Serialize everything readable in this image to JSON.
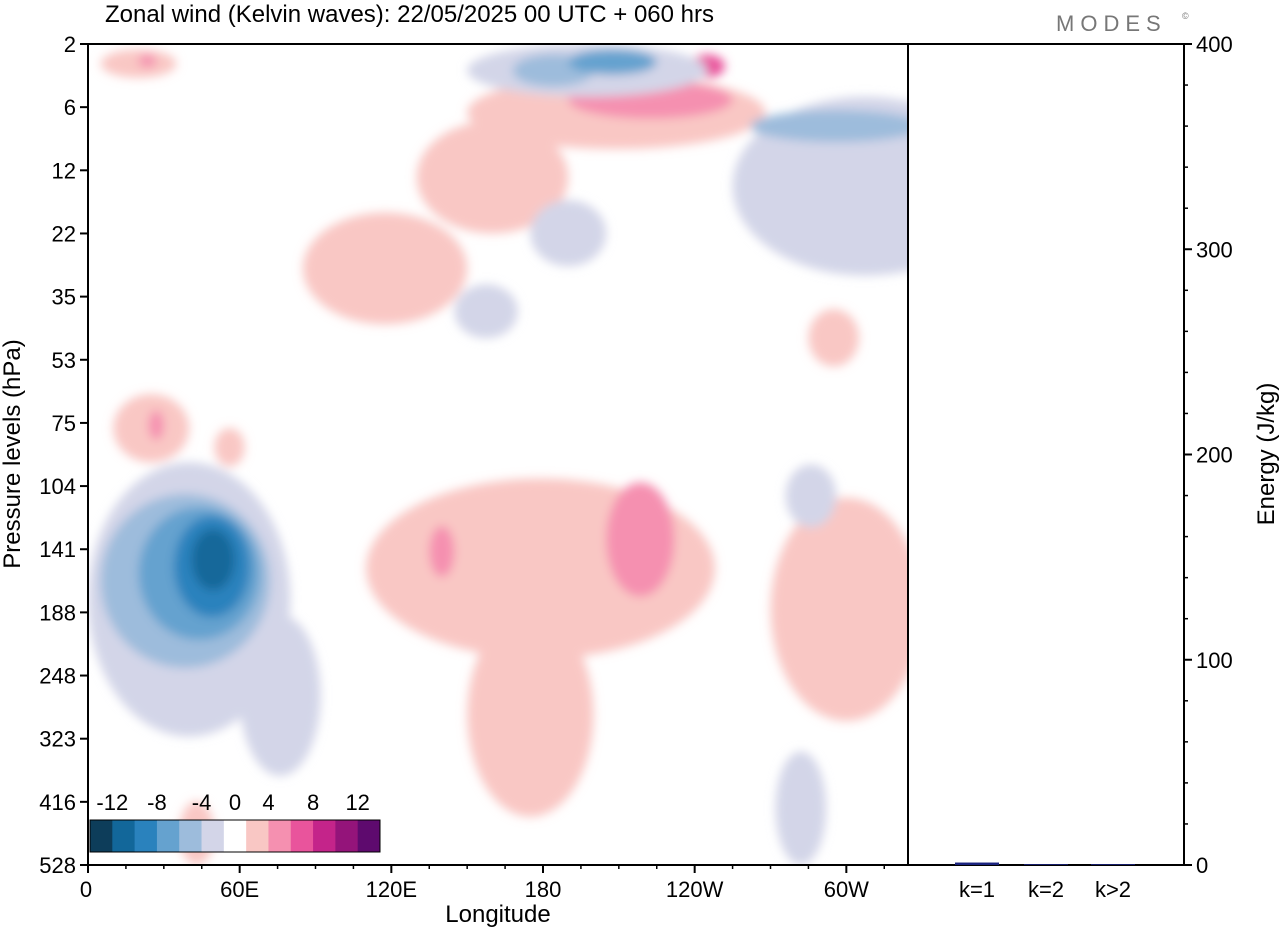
{
  "title": "Zonal wind (Kelvin waves):  22/05/2025  00 UTC  + 060 hrs",
  "brand": "MODES",
  "brand_mark": "©",
  "chart_data": [
    {
      "type": "heatmap",
      "title": "Zonal wind (Kelvin waves):  22/05/2025  00 UTC  + 060 hrs",
      "xlabel": "Longitude",
      "ylabel": "Pressure levels (hPa)",
      "x_ticks": [
        "0",
        "60E",
        "120E",
        "180",
        "120W",
        "60W"
      ],
      "x_range_deg": [
        0,
        360
      ],
      "y_ticks": [
        2,
        6,
        12,
        22,
        35,
        53,
        75,
        104,
        141,
        188,
        248,
        323,
        416,
        528
      ],
      "grid": false,
      "colorbar": {
        "labels": [
          "-12",
          "-8",
          "-4",
          "0",
          "4",
          "8",
          "12"
        ],
        "levels": [
          -14,
          -12,
          -10,
          -8,
          -6,
          -4,
          -2,
          2,
          4,
          6,
          8,
          10,
          12,
          14
        ],
        "colors": [
          "#0d3d5a",
          "#12679a",
          "#2a82bd",
          "#65a2cf",
          "#9dbcdc",
          "#d3d5e8",
          "#ffffff",
          "#f9c7c4",
          "#f590b0",
          "#e9549c",
          "#c4248a",
          "#94147a",
          "#5e0a6e"
        ]
      },
      "regions": [
        {
          "lon": [
            5,
            35
          ],
          "lev": [
            2.2,
            3.6
          ],
          "sign": 1,
          "strength": 1
        },
        {
          "lon": [
            20,
            27
          ],
          "lev": [
            2.4,
            3.0
          ],
          "sign": 1,
          "strength": 2
        },
        {
          "lon": [
            150,
            268
          ],
          "lev": [
            3.5,
            9.5
          ],
          "sign": 1,
          "strength": 1
        },
        {
          "lon": [
            190,
            255
          ],
          "lev": [
            3.8,
            6.8
          ],
          "sign": 1,
          "strength": 2
        },
        {
          "lon": [
            238,
            252
          ],
          "lev": [
            2.4,
            3.6
          ],
          "sign": 1,
          "strength": 3
        },
        {
          "lon": [
            130,
            190
          ],
          "lev": [
            7,
            22
          ],
          "sign": 1,
          "strength": 1
        },
        {
          "lon": [
            85,
            150
          ],
          "lev": [
            18,
            42
          ],
          "sign": 1,
          "strength": 1
        },
        {
          "lon": [
            150,
            245
          ],
          "lev": [
            2,
            5
          ],
          "sign": -1,
          "strength": 1
        },
        {
          "lon": [
            168,
            200
          ],
          "lev": [
            2.4,
            4.2
          ],
          "sign": -1,
          "strength": 2
        },
        {
          "lon": [
            190,
            225
          ],
          "lev": [
            2.2,
            3.4
          ],
          "sign": -1,
          "strength": 3
        },
        {
          "lon": [
            255,
            360
          ],
          "lev": [
            5,
            30
          ],
          "sign": -1,
          "strength": 1
        },
        {
          "lon": [
            262,
            330
          ],
          "lev": [
            6.2,
            8.8
          ],
          "sign": -1,
          "strength": 2
        },
        {
          "lon": [
            175,
            205
          ],
          "lev": [
            16,
            28
          ],
          "sign": -1,
          "strength": 1
        },
        {
          "lon": [
            145,
            170
          ],
          "lev": [
            32,
            46
          ],
          "sign": -1,
          "strength": 1
        },
        {
          "lon": [
            0,
            80
          ],
          "lev": [
            92,
            320
          ],
          "sign": -1,
          "strength": 1
        },
        {
          "lon": [
            5,
            72
          ],
          "lev": [
            108,
            240
          ],
          "sign": -1,
          "strength": 2
        },
        {
          "lon": [
            20,
            68
          ],
          "lev": [
            115,
            212
          ],
          "sign": -1,
          "strength": 3
        },
        {
          "lon": [
            34,
            64
          ],
          "lev": [
            120,
            192
          ],
          "sign": -1,
          "strength": 4
        },
        {
          "lon": [
            41,
            58
          ],
          "lev": [
            128,
            170
          ],
          "sign": -1,
          "strength": 5
        },
        {
          "lon": [
            60,
            92
          ],
          "lev": [
            190,
            375
          ],
          "sign": -1,
          "strength": 1
        },
        {
          "lon": [
            10,
            40
          ],
          "lev": [
            64,
            92
          ],
          "sign": 1,
          "strength": 1
        },
        {
          "lon": [
            24,
            30
          ],
          "lev": [
            70,
            82
          ],
          "sign": 1,
          "strength": 2
        },
        {
          "lon": [
            50,
            62
          ],
          "lev": [
            77,
            94
          ],
          "sign": 1,
          "strength": 1
        },
        {
          "lon": [
            110,
            248
          ],
          "lev": [
            100,
            230
          ],
          "sign": 1,
          "strength": 1
        },
        {
          "lon": [
            205,
            232
          ],
          "lev": [
            102,
            175
          ],
          "sign": 1,
          "strength": 2
        },
        {
          "lon": [
            135,
            145
          ],
          "lev": [
            126,
            160
          ],
          "sign": 1,
          "strength": 2
        },
        {
          "lon": [
            150,
            200
          ],
          "lev": [
            188,
            440
          ],
          "sign": 1,
          "strength": 1
        },
        {
          "lon": [
            270,
            330
          ],
          "lev": [
            110,
            300
          ],
          "sign": 1,
          "strength": 1
        },
        {
          "lon": [
            285,
            305
          ],
          "lev": [
            38,
            55
          ],
          "sign": 1,
          "strength": 1
        },
        {
          "lon": [
            335,
            360
          ],
          "lev": [
            127,
            335
          ],
          "sign": -1,
          "strength": 1
        },
        {
          "lon": [
            345,
            360
          ],
          "lev": [
            142,
            225
          ],
          "sign": -1,
          "strength": 2
        },
        {
          "lon": [
            276,
            296
          ],
          "lev": [
            93,
            127
          ],
          "sign": -1,
          "strength": 1
        },
        {
          "lon": [
            272,
            292
          ],
          "lev": [
            340,
            528
          ],
          "sign": -1,
          "strength": 1
        },
        {
          "lon": [
            36,
            50
          ],
          "lev": [
            415,
            528
          ],
          "sign": 1,
          "strength": 1
        }
      ]
    },
    {
      "type": "bar",
      "categories": [
        "k=1",
        "k=2",
        "k>2"
      ],
      "values": [
        1.2,
        0.4,
        0.4
      ],
      "ylabel": "Energy (J/kg)",
      "ylim": [
        0,
        400
      ],
      "y_ticks": [
        0,
        100,
        200,
        300,
        400
      ],
      "bar_color": "#1a237e"
    }
  ]
}
